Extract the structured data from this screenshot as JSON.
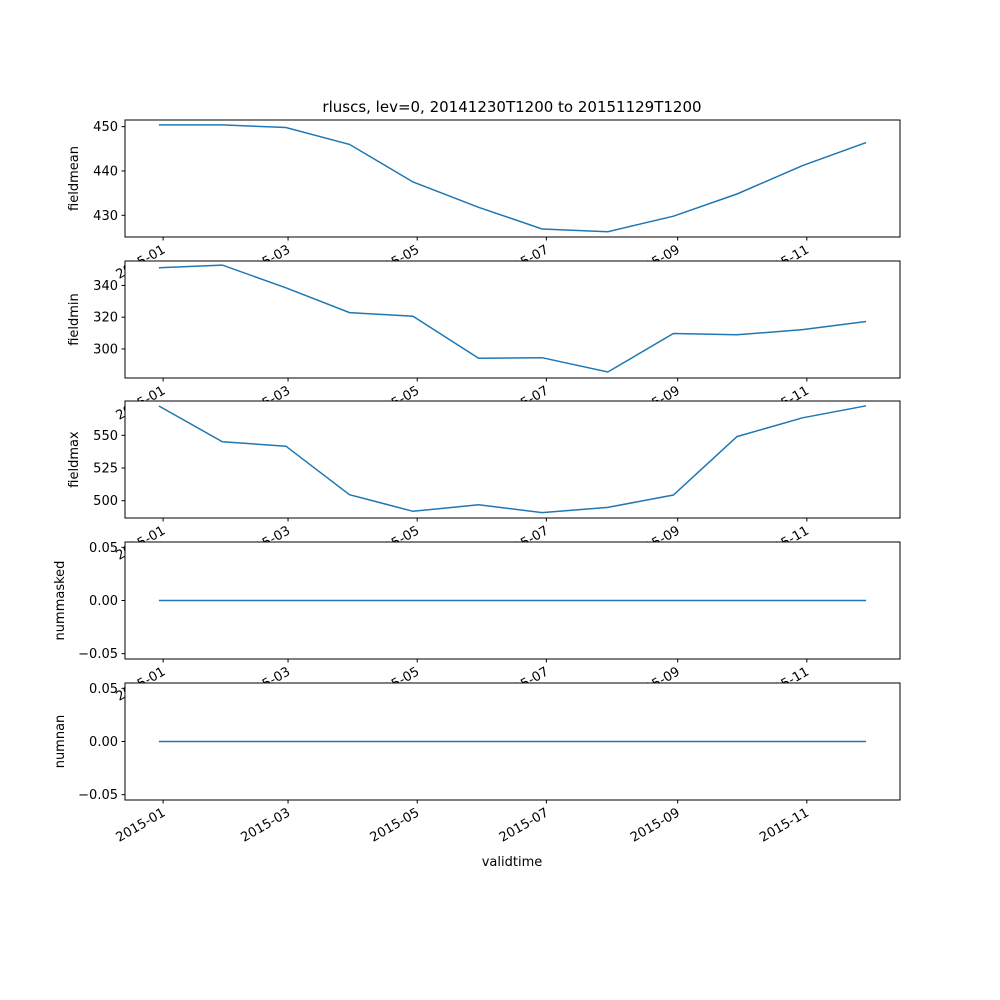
{
  "chart_data": {
    "type": "line",
    "title": "rluscs, lev=0, 20141230T1200 to 20151129T1200",
    "xlabel": "validtime",
    "line_color": "#1f77b4",
    "x": [
      "2014-12-30",
      "2015-01-29",
      "2015-02-28",
      "2015-03-30",
      "2015-04-29",
      "2015-05-30",
      "2015-06-29",
      "2015-07-30",
      "2015-08-30",
      "2015-09-29",
      "2015-10-30",
      "2015-11-29"
    ],
    "xlim": [
      "2014-12-14",
      "2015-12-15"
    ],
    "xticks": [
      {
        "date": "2015-01-01",
        "label": "2015-01"
      },
      {
        "date": "2015-03-01",
        "label": "2015-03"
      },
      {
        "date": "2015-05-01",
        "label": "2015-05"
      },
      {
        "date": "2015-07-01",
        "label": "2015-07"
      },
      {
        "date": "2015-09-01",
        "label": "2015-09"
      },
      {
        "date": "2015-11-01",
        "label": "2015-11"
      }
    ],
    "panels": [
      {
        "ylabel": "fieldmean",
        "ylim": [
          425.1,
          451.5
        ],
        "yticks": [
          {
            "v": 430,
            "label": "430"
          },
          {
            "v": 440,
            "label": "440"
          },
          {
            "v": 450,
            "label": "450"
          }
        ],
        "values": [
          450.4,
          450.4,
          449.8,
          446.0,
          437.5,
          431.8,
          426.9,
          426.3,
          429.8,
          434.8,
          441.2,
          446.4
        ]
      },
      {
        "ylabel": "fieldmin",
        "ylim": [
          281.7,
          355.4
        ],
        "yticks": [
          {
            "v": 300,
            "label": "300"
          },
          {
            "v": 320,
            "label": "320"
          },
          {
            "v": 340,
            "label": "340"
          }
        ],
        "values": [
          351.2,
          352.8,
          338.5,
          322.9,
          320.6,
          294.1,
          294.5,
          285.5,
          309.7,
          308.9,
          312.2,
          317.3
        ]
      },
      {
        "ylabel": "fieldmax",
        "ylim": [
          486.8,
          576.2
        ],
        "yticks": [
          {
            "v": 500,
            "label": "500"
          },
          {
            "v": 525,
            "label": "525"
          },
          {
            "v": 550,
            "label": "550"
          }
        ],
        "values": [
          572.4,
          545.0,
          541.7,
          504.6,
          491.9,
          496.9,
          490.9,
          494.9,
          504.4,
          549.0,
          563.4,
          572.5
        ]
      },
      {
        "ylabel": "nummasked",
        "ylim": [
          -0.055,
          0.055
        ],
        "yticks": [
          {
            "v": -0.05,
            "label": "−0.05"
          },
          {
            "v": 0,
            "label": "0.00"
          },
          {
            "v": 0.05,
            "label": "0.05"
          }
        ],
        "values": [
          0,
          0,
          0,
          0,
          0,
          0,
          0,
          0,
          0,
          0,
          0,
          0
        ]
      },
      {
        "ylabel": "numnan",
        "ylim": [
          -0.055,
          0.055
        ],
        "yticks": [
          {
            "v": -0.05,
            "label": "−0.05"
          },
          {
            "v": 0,
            "label": "0.00"
          },
          {
            "v": 0.05,
            "label": "0.05"
          }
        ],
        "values": [
          0,
          0,
          0,
          0,
          0,
          0,
          0,
          0,
          0,
          0,
          0,
          0
        ]
      }
    ]
  }
}
